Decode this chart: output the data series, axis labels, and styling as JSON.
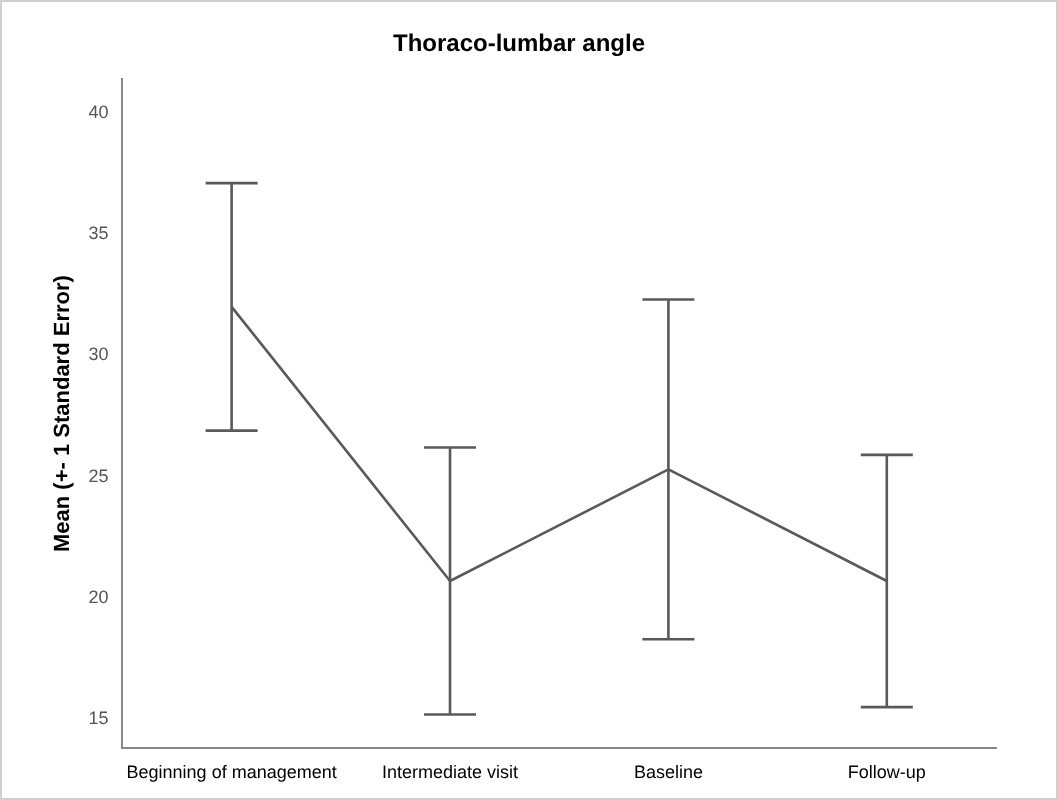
{
  "chart_data": {
    "type": "line",
    "title": "Thoraco-lumbar angle",
    "ylabel": "Mean (+- 1 Standard Error)",
    "categories": [
      "Beginning of management",
      "Intermediate visit",
      "Baseline",
      "Follow-up"
    ],
    "series": [
      {
        "color": "#595959",
        "values": [
          32.0,
          20.7,
          25.3,
          20.7
        ],
        "errors": [
          5.1,
          5.5,
          7.0,
          5.2
        ]
      }
    ],
    "ylim": [
      13.8,
      41.4
    ],
    "yticks": [
      15,
      20,
      25,
      30,
      35,
      40
    ],
    "grid": false,
    "legend": false,
    "marker": "none",
    "line_style": "solid"
  }
}
